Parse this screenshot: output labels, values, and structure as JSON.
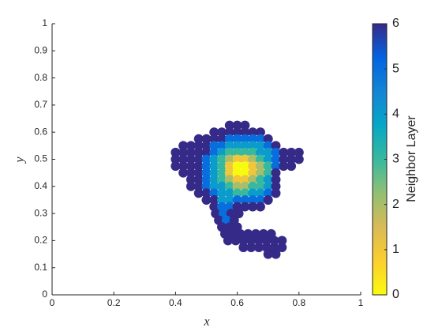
{
  "chart_data": {
    "type": "scatter",
    "x_label": "x",
    "y_label": "y",
    "colorbar_label": "Neighbor Layer",
    "xlim": [
      0,
      1
    ],
    "xticks": [
      0,
      0.2,
      0.4,
      0.6,
      0.8,
      1
    ],
    "ylim": [
      0,
      1
    ],
    "yticks": [
      0,
      0.1,
      0.2,
      0.3,
      0.4,
      0.5,
      0.6,
      0.7,
      0.8,
      0.9,
      1
    ],
    "clim": [
      0,
      6
    ],
    "cticks": [
      0,
      1,
      2,
      3,
      4,
      5,
      6
    ],
    "colormap": [
      "#f9fb0e",
      "#fcce2e",
      "#d9ba56",
      "#92bf73",
      "#38b99e",
      "#06a7c6",
      "#1485d4",
      "#0363e1",
      "#352a87"
    ],
    "series": [
      {
        "x": [
          0.575,
          0.6,
          0.625,
          0.525,
          0.55,
          0.575,
          0.6,
          0.625,
          0.65,
          0.675,
          0.475,
          0.5,
          0.525,
          0.55,
          0.575,
          0.6,
          0.625,
          0.65,
          0.675,
          0.7,
          0.425,
          0.45,
          0.475,
          0.5,
          0.525,
          0.55,
          0.575,
          0.6,
          0.625,
          0.65,
          0.675,
          0.7,
          0.725,
          0.4,
          0.425,
          0.45,
          0.475,
          0.5,
          0.525,
          0.55,
          0.575,
          0.6,
          0.625,
          0.65,
          0.675,
          0.7,
          0.725,
          0.75,
          0.775,
          0.8,
          0.4,
          0.425,
          0.45,
          0.475,
          0.5,
          0.525,
          0.55,
          0.575,
          0.6,
          0.625,
          0.65,
          0.675,
          0.7,
          0.725,
          0.75,
          0.775,
          0.8,
          0.4,
          0.425,
          0.45,
          0.475,
          0.5,
          0.525,
          0.55,
          0.575,
          0.6,
          0.625,
          0.65,
          0.675,
          0.7,
          0.725,
          0.75,
          0.775,
          0.425,
          0.45,
          0.475,
          0.5,
          0.525,
          0.55,
          0.575,
          0.6,
          0.625,
          0.65,
          0.675,
          0.7,
          0.725,
          0.45,
          0.475,
          0.5,
          0.525,
          0.55,
          0.575,
          0.6,
          0.625,
          0.65,
          0.675,
          0.7,
          0.725,
          0.45,
          0.475,
          0.5,
          0.525,
          0.55,
          0.575,
          0.6,
          0.625,
          0.65,
          0.675,
          0.7,
          0.725,
          0.475,
          0.5,
          0.525,
          0.55,
          0.575,
          0.6,
          0.625,
          0.65,
          0.675,
          0.7,
          0.725,
          0.5,
          0.525,
          0.55,
          0.575,
          0.6,
          0.625,
          0.65,
          0.675,
          0.7,
          0.525,
          0.55,
          0.575,
          0.6,
          0.625,
          0.65,
          0.675,
          0.53,
          0.555,
          0.58,
          0.605,
          0.54,
          0.565,
          0.59,
          0.55,
          0.575,
          0.6,
          0.56,
          0.585,
          0.61,
          0.635,
          0.66,
          0.685,
          0.71,
          0.57,
          0.595,
          0.62,
          0.645,
          0.67,
          0.695,
          0.72,
          0.745,
          0.62,
          0.645,
          0.67,
          0.695,
          0.72,
          0.745,
          0.7,
          0.725
        ],
        "y": [
          0.625,
          0.625,
          0.625,
          0.6,
          0.6,
          0.6,
          0.6,
          0.6,
          0.6,
          0.6,
          0.575,
          0.575,
          0.575,
          0.575,
          0.575,
          0.575,
          0.575,
          0.575,
          0.575,
          0.575,
          0.55,
          0.55,
          0.55,
          0.55,
          0.55,
          0.55,
          0.55,
          0.55,
          0.55,
          0.55,
          0.55,
          0.55,
          0.55,
          0.525,
          0.525,
          0.525,
          0.525,
          0.525,
          0.525,
          0.525,
          0.525,
          0.525,
          0.525,
          0.525,
          0.525,
          0.525,
          0.525,
          0.525,
          0.525,
          0.525,
          0.5,
          0.5,
          0.5,
          0.5,
          0.5,
          0.5,
          0.5,
          0.5,
          0.5,
          0.5,
          0.5,
          0.5,
          0.5,
          0.5,
          0.5,
          0.5,
          0.5,
          0.475,
          0.475,
          0.475,
          0.475,
          0.475,
          0.475,
          0.475,
          0.475,
          0.475,
          0.475,
          0.475,
          0.475,
          0.475,
          0.475,
          0.475,
          0.475,
          0.45,
          0.45,
          0.45,
          0.45,
          0.45,
          0.45,
          0.45,
          0.45,
          0.45,
          0.45,
          0.45,
          0.45,
          0.45,
          0.425,
          0.425,
          0.425,
          0.425,
          0.425,
          0.425,
          0.425,
          0.425,
          0.425,
          0.425,
          0.425,
          0.425,
          0.4,
          0.4,
          0.4,
          0.4,
          0.4,
          0.4,
          0.4,
          0.4,
          0.4,
          0.4,
          0.4,
          0.4,
          0.375,
          0.375,
          0.375,
          0.375,
          0.375,
          0.375,
          0.375,
          0.375,
          0.375,
          0.375,
          0.375,
          0.35,
          0.35,
          0.35,
          0.35,
          0.35,
          0.35,
          0.35,
          0.35,
          0.35,
          0.325,
          0.325,
          0.325,
          0.325,
          0.325,
          0.325,
          0.325,
          0.3,
          0.3,
          0.3,
          0.3,
          0.275,
          0.275,
          0.275,
          0.25,
          0.25,
          0.25,
          0.225,
          0.225,
          0.225,
          0.225,
          0.225,
          0.225,
          0.225,
          0.2,
          0.2,
          0.2,
          0.2,
          0.2,
          0.2,
          0.2,
          0.2,
          0.175,
          0.175,
          0.175,
          0.175,
          0.175,
          0.175,
          0.15,
          0.15
        ],
        "values": [
          6,
          6,
          6,
          6,
          6,
          6,
          6,
          6,
          6,
          6,
          6,
          6,
          6,
          6,
          5,
          5,
          5,
          5,
          5,
          6,
          6,
          6,
          6,
          6,
          5,
          5,
          4,
          4,
          4,
          4,
          4,
          5,
          6,
          6,
          6,
          6,
          6,
          6,
          5,
          4,
          3,
          3,
          3,
          3,
          4,
          4,
          5,
          6,
          6,
          6,
          6,
          6,
          6,
          6,
          5,
          4,
          3,
          2,
          1,
          1,
          2,
          3,
          4,
          5,
          6,
          6,
          6,
          6,
          6,
          6,
          6,
          5,
          4,
          3,
          1,
          0,
          0,
          1,
          2,
          3,
          5,
          6,
          6,
          6,
          6,
          6,
          5,
          4,
          3,
          1,
          0,
          0,
          1,
          2,
          3,
          6,
          6,
          6,
          5,
          4,
          3,
          2,
          1,
          1,
          2,
          3,
          4,
          6,
          6,
          6,
          5,
          4,
          4,
          3,
          2,
          2,
          3,
          3,
          4,
          6,
          6,
          6,
          5,
          4,
          4,
          3,
          3,
          4,
          4,
          5,
          6,
          6,
          6,
          4,
          4,
          5,
          5,
          5,
          5,
          6,
          6,
          5,
          5,
          6,
          6,
          6,
          6,
          6,
          5,
          6,
          6,
          6,
          5,
          6,
          6,
          6,
          6,
          6,
          6,
          6,
          6,
          6,
          6,
          6,
          6,
          6,
          6,
          6,
          6,
          6,
          6,
          6,
          6,
          6,
          6,
          6,
          6,
          6,
          6,
          6
        ]
      }
    ]
  }
}
